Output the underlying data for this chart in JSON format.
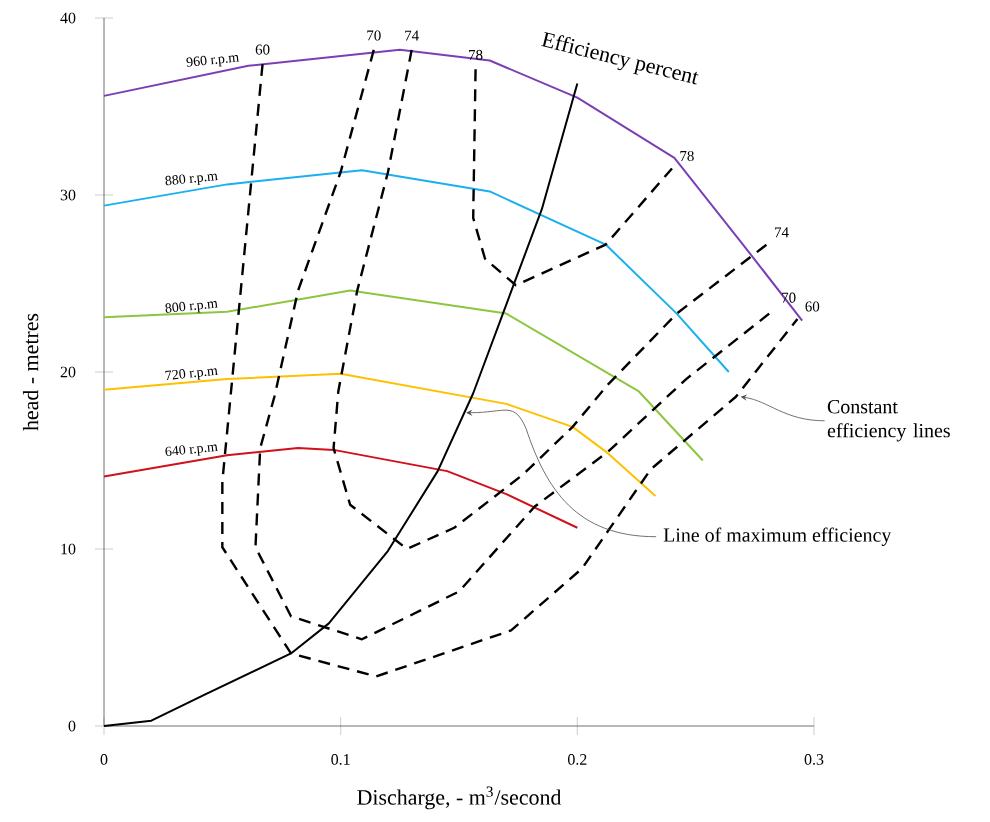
{
  "chart_data": {
    "type": "line",
    "xlabel": "Discharge, - m$^{3}$/second",
    "ylabel": "head - metres",
    "xlim": [
      0,
      0.3
    ],
    "ylim": [
      0,
      40
    ],
    "xticks": [
      0,
      0.1,
      0.2,
      0.3
    ],
    "yticks": [
      0,
      10,
      20,
      30,
      40
    ],
    "grid": false,
    "legend": false,
    "marker": "none",
    "series": [
      {
        "name": "960 r.p.m",
        "color": "#7b3fb5",
        "line_style": "solid",
        "x": [
          0,
          0.061,
          0.125,
          0.163,
          0.2,
          0.241,
          0.27,
          0.295
        ],
        "values": [
          35.6,
          37.3,
          38.2,
          37.6,
          35.5,
          32.1,
          27.2,
          22.9
        ]
      },
      {
        "name": "880 r.p.m",
        "color": "#1ab0ef",
        "line_style": "solid",
        "x": [
          0,
          0.052,
          0.109,
          0.163,
          0.212,
          0.242,
          0.264
        ],
        "values": [
          29.4,
          30.6,
          31.4,
          30.2,
          27.2,
          23.3,
          20.0
        ]
      },
      {
        "name": "800 r.p.m",
        "color": "#8cc63f",
        "line_style": "solid",
        "x": [
          0,
          0.052,
          0.104,
          0.17,
          0.226,
          0.253
        ],
        "values": [
          23.1,
          23.4,
          24.6,
          23.3,
          18.9,
          15.0
        ]
      },
      {
        "name": "720 r.p.m",
        "color": "#ffc000",
        "line_style": "solid",
        "x": [
          0,
          0.052,
          0.1,
          0.17,
          0.198,
          0.213,
          0.233
        ],
        "values": [
          19.0,
          19.6,
          19.9,
          18.2,
          16.9,
          15.4,
          13.0
        ]
      },
      {
        "name": "640 r.p.m",
        "color": "#d0101a",
        "line_style": "solid",
        "x": [
          0,
          0.052,
          0.082,
          0.097,
          0.145,
          0.17,
          0.2
        ],
        "values": [
          14.1,
          15.3,
          15.7,
          15.6,
          14.4,
          13.1,
          11.2
        ]
      },
      {
        "color": "#000000",
        "line_style": "solid",
        "x": [
          0,
          0.02,
          0.043,
          0.079,
          0.095,
          0.12,
          0.141,
          0.156,
          0.185,
          0.2
        ],
        "values": [
          0,
          0.3,
          1.8,
          4.1,
          5.8,
          9.9,
          14.4,
          18.8,
          29.2,
          36.3
        ]
      },
      {
        "name": "60",
        "color": "#000000",
        "line_style": "dashed",
        "x": [
          0.067,
          0.05,
          0.05,
          0.079,
          0.115,
          0.172,
          0.202,
          0.231,
          0.267,
          0.293
        ],
        "values": [
          37.4,
          13.8,
          10.1,
          4.1,
          2.8,
          5.4,
          8.9,
          14.5,
          18.6,
          23.0
        ]
      },
      {
        "name": "70",
        "color": "#000000",
        "line_style": "dashed",
        "x": [
          0.114,
          0.1,
          0.082,
          0.072,
          0.066,
          0.064,
          0.079,
          0.109,
          0.15,
          0.182,
          0.213,
          0.246,
          0.283
        ],
        "values": [
          38.2,
          31.3,
          24.6,
          18.6,
          15.7,
          10.1,
          6.2,
          4.9,
          7.6,
          12.4,
          15.5,
          19.6,
          23.5
        ]
      },
      {
        "name": "74",
        "color": "#000000",
        "line_style": "dashed",
        "x": [
          0.13,
          0.12,
          0.107,
          0.099,
          0.097,
          0.104,
          0.128,
          0.148,
          0.177,
          0.198,
          0.213,
          0.242,
          0.28
        ],
        "values": [
          38.2,
          31.3,
          24.6,
          18.9,
          15.7,
          12.5,
          10.0,
          11.2,
          14.2,
          16.9,
          19.3,
          23.3,
          27.2
        ]
      },
      {
        "name": "78",
        "color": "#000000",
        "line_style": "dashed",
        "x": [
          0.157,
          0.156,
          0.161,
          0.174,
          0.212,
          0.24
        ],
        "values": [
          37.1,
          28.7,
          26.4,
          24.9,
          27.2,
          31.5
        ]
      }
    ],
    "annotations": [
      {
        "text": "Efficiency percent",
        "x": 0.2,
        "y": 36.3
      },
      {
        "text": "78",
        "x": 0.24,
        "y": 31.5
      },
      {
        "text": "74",
        "x": 0.28,
        "y": 27.2
      },
      {
        "text": "70",
        "x": 0.283,
        "y": 23.5
      },
      {
        "text": "60",
        "x": 0.293,
        "y": 23.0
      },
      {
        "text": "Constant efficiency lines",
        "x": 0.269,
        "y": 18.6
      },
      {
        "text": "Line of maximum efficiency",
        "x": 0.153,
        "y": 17.7
      }
    ]
  }
}
